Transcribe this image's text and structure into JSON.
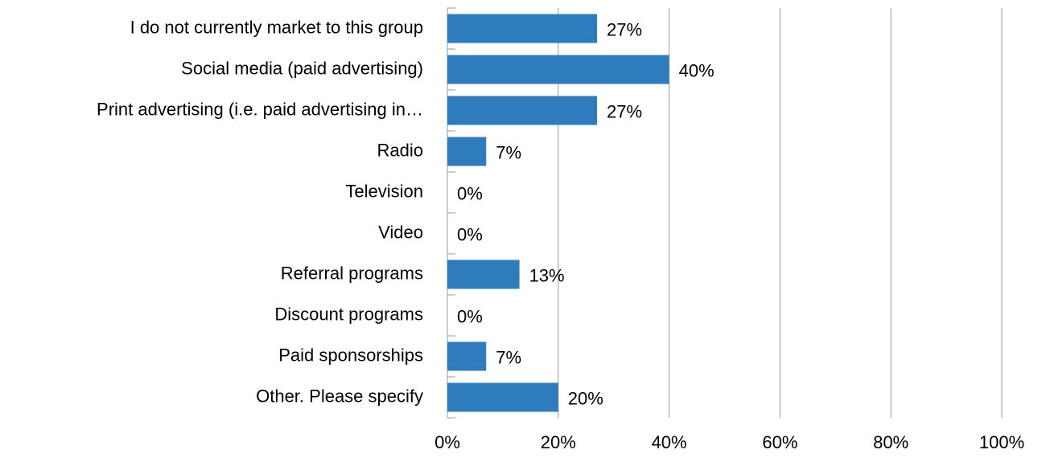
{
  "chart_data": {
    "type": "bar",
    "orientation": "horizontal",
    "categories": [
      "I do not currently market to this group",
      "Social media (paid advertising)",
      "Print advertising (i.e. paid advertising in…",
      "Radio",
      "Television",
      "Video",
      "Referral programs",
      "Discount programs",
      "Paid sponsorships",
      "Other. Please specify"
    ],
    "values": [
      27,
      40,
      27,
      7,
      0,
      0,
      13,
      0,
      7,
      20
    ],
    "value_labels": [
      "27%",
      "40%",
      "27%",
      "7%",
      "0%",
      "0%",
      "13%",
      "0%",
      "7%",
      "20%"
    ],
    "color": "#2e7bbd",
    "xlim": [
      0,
      100
    ],
    "xticks": [
      {
        "value": 0,
        "label": "0%"
      },
      {
        "value": 20,
        "label": "20%"
      },
      {
        "value": 40,
        "label": "40%"
      },
      {
        "value": 60,
        "label": "60%"
      },
      {
        "value": 80,
        "label": "80%"
      },
      {
        "value": 100,
        "label": "100%"
      }
    ],
    "grid": true
  }
}
